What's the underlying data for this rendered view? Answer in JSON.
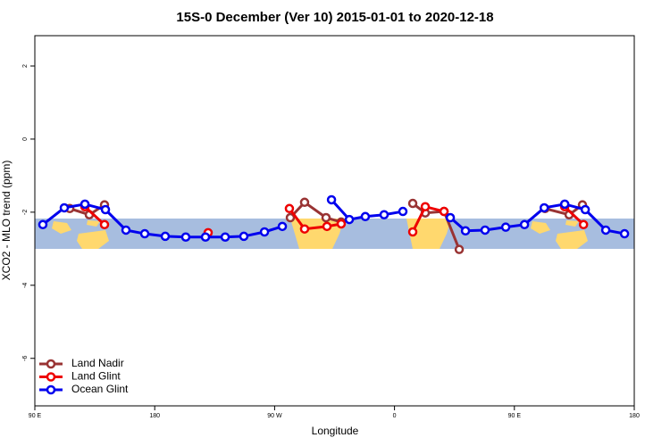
{
  "chart_data": {
    "type": "line",
    "title": "15S-0 December (Ver 10)   2015-01-01 to 2020-12-18",
    "x_label": "Longitude",
    "y_label": "XCO2 - MLO trend (ppm)",
    "xlim": [
      90,
      540
    ],
    "xticks": [
      {
        "value": 90,
        "label": "90 E"
      },
      180,
      {
        "value": 270,
        "label": "90 W"
      },
      {
        "value": 360,
        "label": "0"
      },
      {
        "value": 450,
        "label": "90 E"
      },
      {
        "value": 540,
        "label": "180"
      }
    ],
    "ylim": [
      -7.3,
      2.83
    ],
    "yticks": [
      2,
      0,
      -2,
      -4,
      -6
    ],
    "legend": "bottom-left",
    "series": [
      {
        "name": "Land Nadir",
        "color": "#993333",
        "x": [
          116.2,
          130.9,
          142.3,
          null,
          281.8,
          292.5,
          308.6,
          320.0,
          null,
          373.7,
          383.1,
          397.2,
          408.6,
          null,
          473.0,
          491.1,
          501.1
        ],
        "values": [
          -1.9,
          -2.07,
          -1.8,
          null,
          -2.15,
          -1.73,
          -2.15,
          -2.27,
          null,
          -1.76,
          -2.02,
          -1.98,
          -3.02,
          null,
          -1.9,
          -2.07,
          -1.8
        ]
      },
      {
        "name": "Land Glint",
        "color": "#ee0000",
        "x": [
          127.6,
          142.3,
          null,
          220.1,
          null,
          281.1,
          292.5,
          309.3,
          320.0,
          null,
          373.7,
          383.1,
          397.2,
          null,
          487.8,
          501.9
        ],
        "values": [
          -1.85,
          -2.34,
          null,
          -2.56,
          null,
          -1.9,
          -2.46,
          -2.39,
          -2.32,
          null,
          -2.54,
          -1.85,
          -1.98,
          null,
          -1.85,
          -2.34
        ]
      },
      {
        "name": "Ocean Glint",
        "color": "#0000ee",
        "x": [
          96.0,
          112.1,
          127.6,
          143.0,
          158.4,
          172.5,
          187.9,
          203.3,
          218.1,
          232.9,
          246.9,
          262.4,
          275.8,
          null,
          312.7,
          326.1,
          338.1,
          352.2,
          366.3,
          null,
          401.9,
          413.3,
          428.0,
          443.5,
          457.6,
          472.4,
          487.8,
          503.2,
          518.6,
          532.7
        ],
        "values": [
          -2.34,
          -1.88,
          -1.78,
          -1.93,
          -2.49,
          -2.59,
          -2.66,
          -2.68,
          -2.68,
          -2.68,
          -2.66,
          -2.54,
          -2.39,
          null,
          -1.66,
          -2.2,
          -2.12,
          -2.07,
          -1.98,
          null,
          -2.15,
          -2.51,
          -2.49,
          -2.41,
          -2.34,
          -1.88,
          -1.78,
          -1.93,
          -2.49,
          -2.59
        ]
      }
    ]
  }
}
